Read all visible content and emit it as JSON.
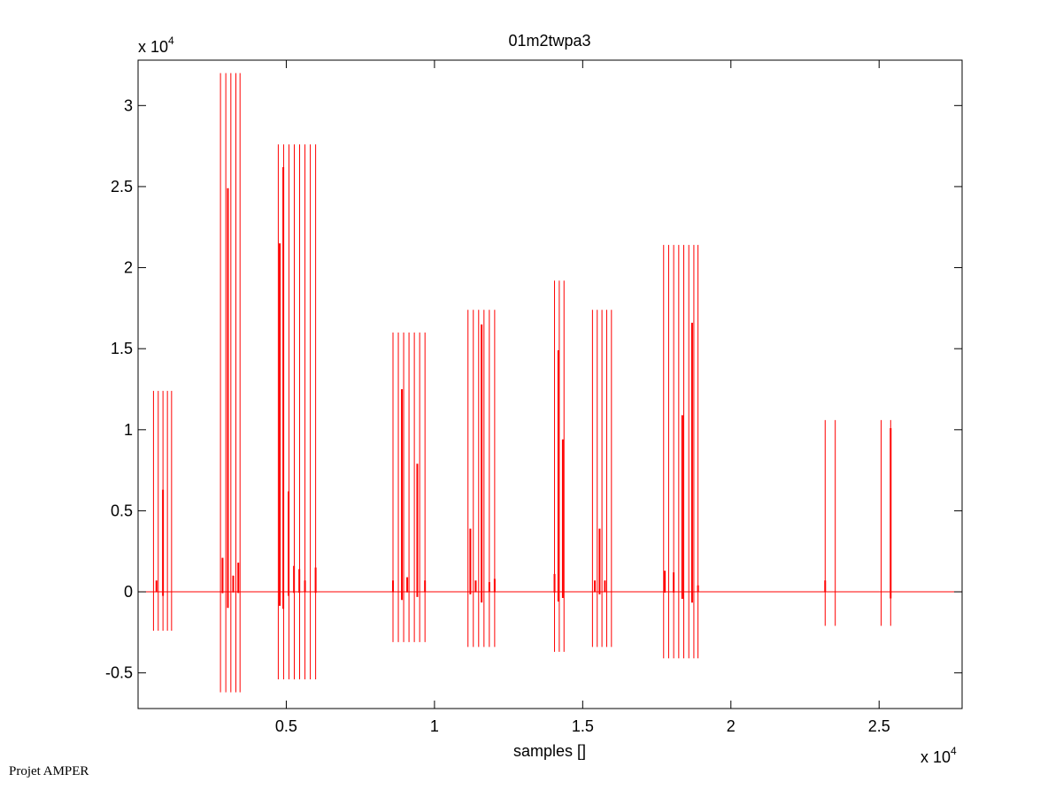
{
  "figure": {
    "footer_text": "Projet AMPER"
  },
  "chart_data": {
    "type": "line",
    "title": "01m2twpa3",
    "xlabel": "samples []",
    "ylabel": "",
    "x_multiplier_label": "x 10",
    "x_multiplier_exp": "4",
    "y_multiplier_label": "x 10",
    "y_multiplier_exp": "4",
    "xlim": [
      0,
      27800
    ],
    "ylim": [
      -7200,
      32800
    ],
    "xticks": [
      5000,
      10000,
      15000,
      20000,
      25000
    ],
    "xtick_labels": [
      "0.5",
      "1",
      "1.5",
      "2",
      "2.5"
    ],
    "yticks": [
      -5000,
      0,
      5000,
      10000,
      15000,
      20000,
      25000,
      30000
    ],
    "ytick_labels": [
      "-0.5",
      "0",
      "0.5",
      "1",
      "1.5",
      "2",
      "2.5",
      "3"
    ],
    "grid": false,
    "baseline": 0,
    "line_color": "#ff0000",
    "bursts": [
      {
        "x": [
          520,
          680,
          840,
          990,
          1130
        ],
        "max": 12400,
        "min": -2400
      },
      {
        "x": [
          2780,
          2960,
          3130,
          3300,
          3440
        ],
        "max": 32000,
        "min": -6200
      },
      {
        "x": [
          4730,
          4910,
          5090,
          5270,
          5450,
          5630,
          5810,
          5990
        ],
        "max": 27600,
        "min": -5400
      },
      {
        "x": [
          8600,
          8780,
          8960,
          9140,
          9320,
          9500,
          9680
        ],
        "max": 16000,
        "min": -3100
      },
      {
        "x": [
          11130,
          11310,
          11490,
          11670,
          11850,
          12030
        ],
        "max": 17400,
        "min": -3400
      },
      {
        "x": [
          14050,
          14210,
          14370
        ],
        "max": 19200,
        "min": -3700
      },
      {
        "x": [
          15330,
          15490,
          15650,
          15810,
          15970
        ],
        "max": 17400,
        "min": -3400
      },
      {
        "x": [
          17730,
          17900,
          18070,
          18240,
          18410,
          18580,
          18750,
          18890
        ],
        "max": 21400,
        "min": -4100
      },
      {
        "x": [
          23180,
          23520
        ],
        "max": 10600,
        "min": -2100
      },
      {
        "x": [
          25070,
          25390
        ],
        "max": 10600,
        "min": -2100
      }
    ],
    "inner_spikes": [
      [
        620,
        700
      ],
      [
        840,
        6300
      ],
      [
        2850,
        2100
      ],
      [
        3030,
        24900
      ],
      [
        3210,
        1000
      ],
      [
        3380,
        1800
      ],
      [
        4780,
        21500
      ],
      [
        4900,
        26200
      ],
      [
        5080,
        6200
      ],
      [
        5260,
        1600
      ],
      [
        5440,
        1400
      ],
      [
        5630,
        700
      ],
      [
        5990,
        1500
      ],
      [
        8600,
        700
      ],
      [
        8900,
        12500
      ],
      [
        9080,
        900
      ],
      [
        9420,
        7900
      ],
      [
        9680,
        700
      ],
      [
        11210,
        3900
      ],
      [
        11390,
        700
      ],
      [
        11590,
        16500
      ],
      [
        11850,
        600
      ],
      [
        12030,
        800
      ],
      [
        14050,
        1100
      ],
      [
        14180,
        14900
      ],
      [
        14330,
        9400
      ],
      [
        15410,
        700
      ],
      [
        15570,
        3900
      ],
      [
        15750,
        700
      ],
      [
        17770,
        1300
      ],
      [
        18070,
        1200
      ],
      [
        18360,
        10900
      ],
      [
        18690,
        16600
      ],
      [
        18890,
        400
      ],
      [
        23180,
        700
      ],
      [
        25390,
        10100
      ]
    ]
  }
}
